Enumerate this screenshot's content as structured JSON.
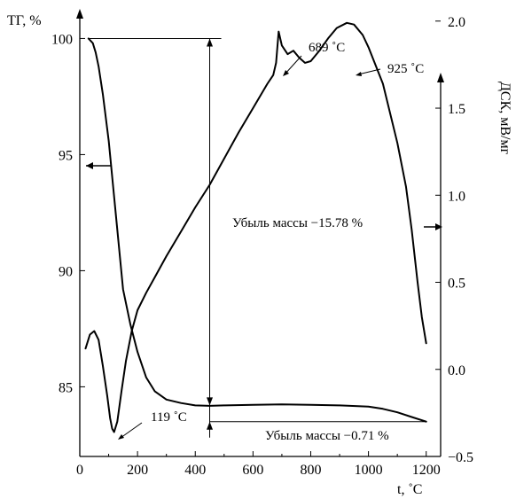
{
  "chart_data": {
    "type": "line",
    "xlabel": "t, ˚C",
    "ylabel_left": "ТГ, %",
    "ylabel_right": "ДСК, мВ/мг",
    "xlim": [
      0,
      1250
    ],
    "ylim_left": [
      82,
      101.2
    ],
    "ylim_right": [
      -0.5,
      2.06
    ],
    "x_ticks": [
      0,
      200,
      400,
      600,
      800,
      1000,
      1200
    ],
    "y_left_ticks": [
      85,
      90,
      95,
      100
    ],
    "y_right_ticks": [
      -0.5,
      0.0,
      0.5,
      1.0,
      1.5,
      2.0
    ],
    "x_tick_labels": [
      "0",
      "200",
      "400",
      "600",
      "800",
      "1000",
      "1200"
    ],
    "y_left_tick_labels": [
      "85",
      "90",
      "95",
      "100"
    ],
    "y_right_tick_labels": [
      "−0.5",
      "0.0",
      "0.5",
      "1.0",
      "1.5",
      "2.0"
    ],
    "series": [
      {
        "axis": "left",
        "x": [
          30,
          45,
          55,
          65,
          80,
          100,
          125,
          150,
          175,
          200,
          230,
          260,
          300,
          350,
          400,
          450,
          500,
          600,
          700,
          800,
          900,
          1000,
          1050,
          1100,
          1150,
          1200
        ],
        "y": [
          100,
          99.8,
          99.4,
          98.8,
          97.6,
          95.6,
          92.4,
          89.2,
          87.7,
          86.5,
          85.4,
          84.8,
          84.45,
          84.3,
          84.2,
          84.18,
          84.2,
          84.22,
          84.24,
          84.22,
          84.2,
          84.15,
          84.05,
          83.9,
          83.7,
          83.5
        ]
      },
      {
        "axis": "right",
        "x": [
          20,
          35,
          50,
          65,
          80,
          95,
          105,
          112,
          119,
          130,
          145,
          160,
          180,
          200,
          230,
          260,
          300,
          350,
          400,
          450,
          500,
          550,
          600,
          650,
          670,
          680,
          689,
          700,
          720,
          740,
          760,
          780,
          800,
          830,
          860,
          890,
          925,
          950,
          980,
          1000,
          1050,
          1100,
          1130,
          1150,
          1170,
          1185,
          1200
        ],
        "y": [
          0.12,
          0.2,
          0.22,
          0.17,
          0.02,
          -0.15,
          -0.28,
          -0.34,
          -0.36,
          -0.3,
          -0.12,
          0.05,
          0.22,
          0.34,
          0.44,
          0.53,
          0.65,
          0.79,
          0.93,
          1.06,
          1.21,
          1.36,
          1.5,
          1.64,
          1.69,
          1.76,
          1.94,
          1.86,
          1.81,
          1.83,
          1.79,
          1.76,
          1.77,
          1.83,
          1.9,
          1.96,
          1.99,
          1.98,
          1.92,
          1.85,
          1.64,
          1.3,
          1.05,
          0.8,
          0.5,
          0.3,
          0.15
        ]
      }
    ],
    "annotations": {
      "peak1": "689 ˚C",
      "peak2": "925 ˚C",
      "min1": "119 ˚C",
      "loss1": "Убыль массы −15.78 %",
      "loss2": "Убыль массы −0.71 %"
    }
  }
}
